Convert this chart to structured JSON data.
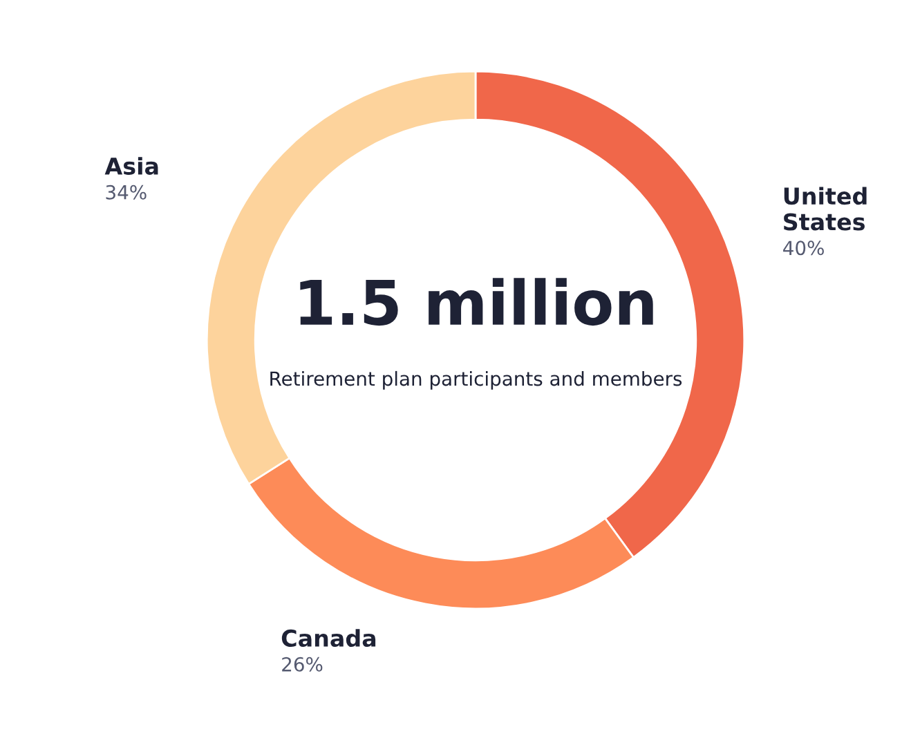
{
  "chart_data": {
    "type": "donut",
    "title": "1.5 million",
    "subtitle": "Retirement plan participants and members",
    "categories": [
      "United States",
      "Canada",
      "Asia"
    ],
    "values": [
      40,
      26,
      34
    ],
    "colors": [
      "#f0674a",
      "#fd8b58",
      "#fdd39c"
    ],
    "value_labels": [
      "40%",
      "26%",
      "34%"
    ]
  }
}
